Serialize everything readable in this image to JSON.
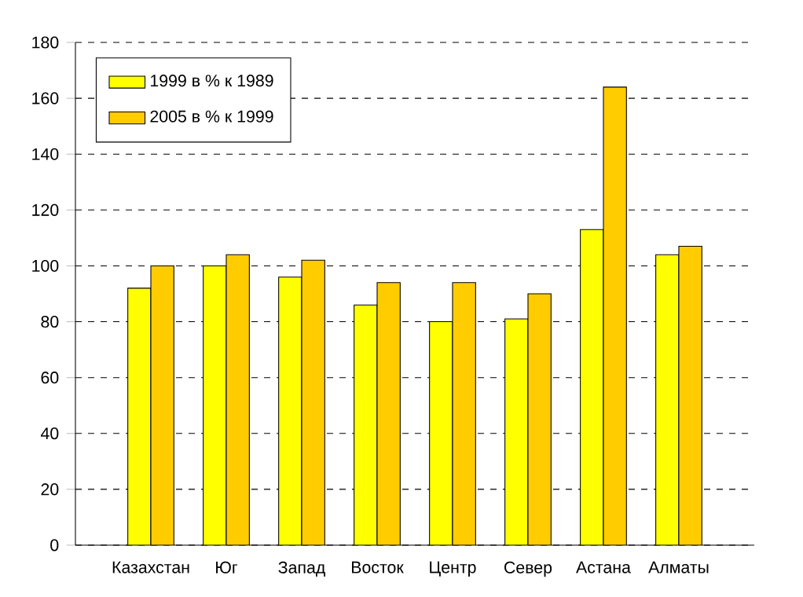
{
  "chart_data": {
    "type": "bar",
    "categories": [
      "Казахстан",
      "Юг",
      "Запад",
      "Восток",
      "Центр",
      "Север",
      "Астана",
      "Алматы"
    ],
    "series": [
      {
        "name": "1999 в % к 1989",
        "color": "#ffff00",
        "values": [
          92,
          100,
          96,
          86,
          80,
          81,
          113,
          104
        ]
      },
      {
        "name": "2005 в % к 1999",
        "color": "#ffcc00",
        "values": [
          100,
          104,
          102,
          94,
          94,
          90,
          164,
          107
        ]
      }
    ],
    "ylim": [
      0,
      180
    ],
    "yticks": [
      0,
      20,
      40,
      60,
      80,
      100,
      120,
      140,
      160,
      180
    ],
    "grid": "y",
    "legend": "top left"
  }
}
